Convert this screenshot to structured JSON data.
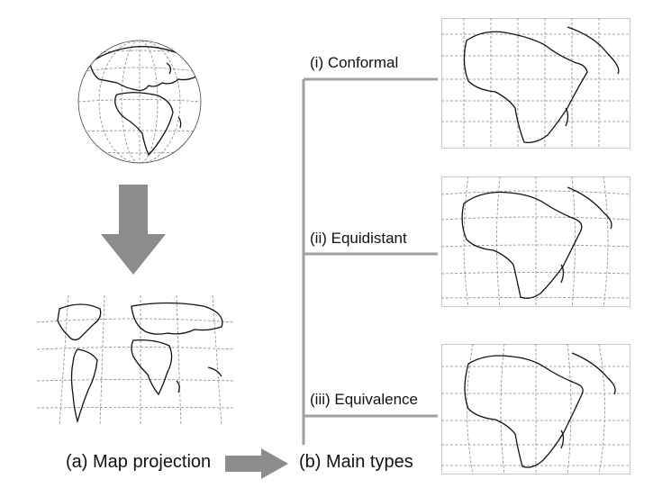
{
  "captions": {
    "map_projection": "(a) Map projection",
    "main_types": "(b) Main types"
  },
  "projection_types": [
    {
      "label": "(i) Conformal"
    },
    {
      "label": "(ii) Equidistant"
    },
    {
      "label": "(iii) Equivalence"
    }
  ],
  "colors": {
    "arrow": "#8c8c8c",
    "tree_line": "#a0a0a0",
    "coastline": "#111111",
    "graticule": "#888888",
    "frame": "#c8c8c8"
  }
}
